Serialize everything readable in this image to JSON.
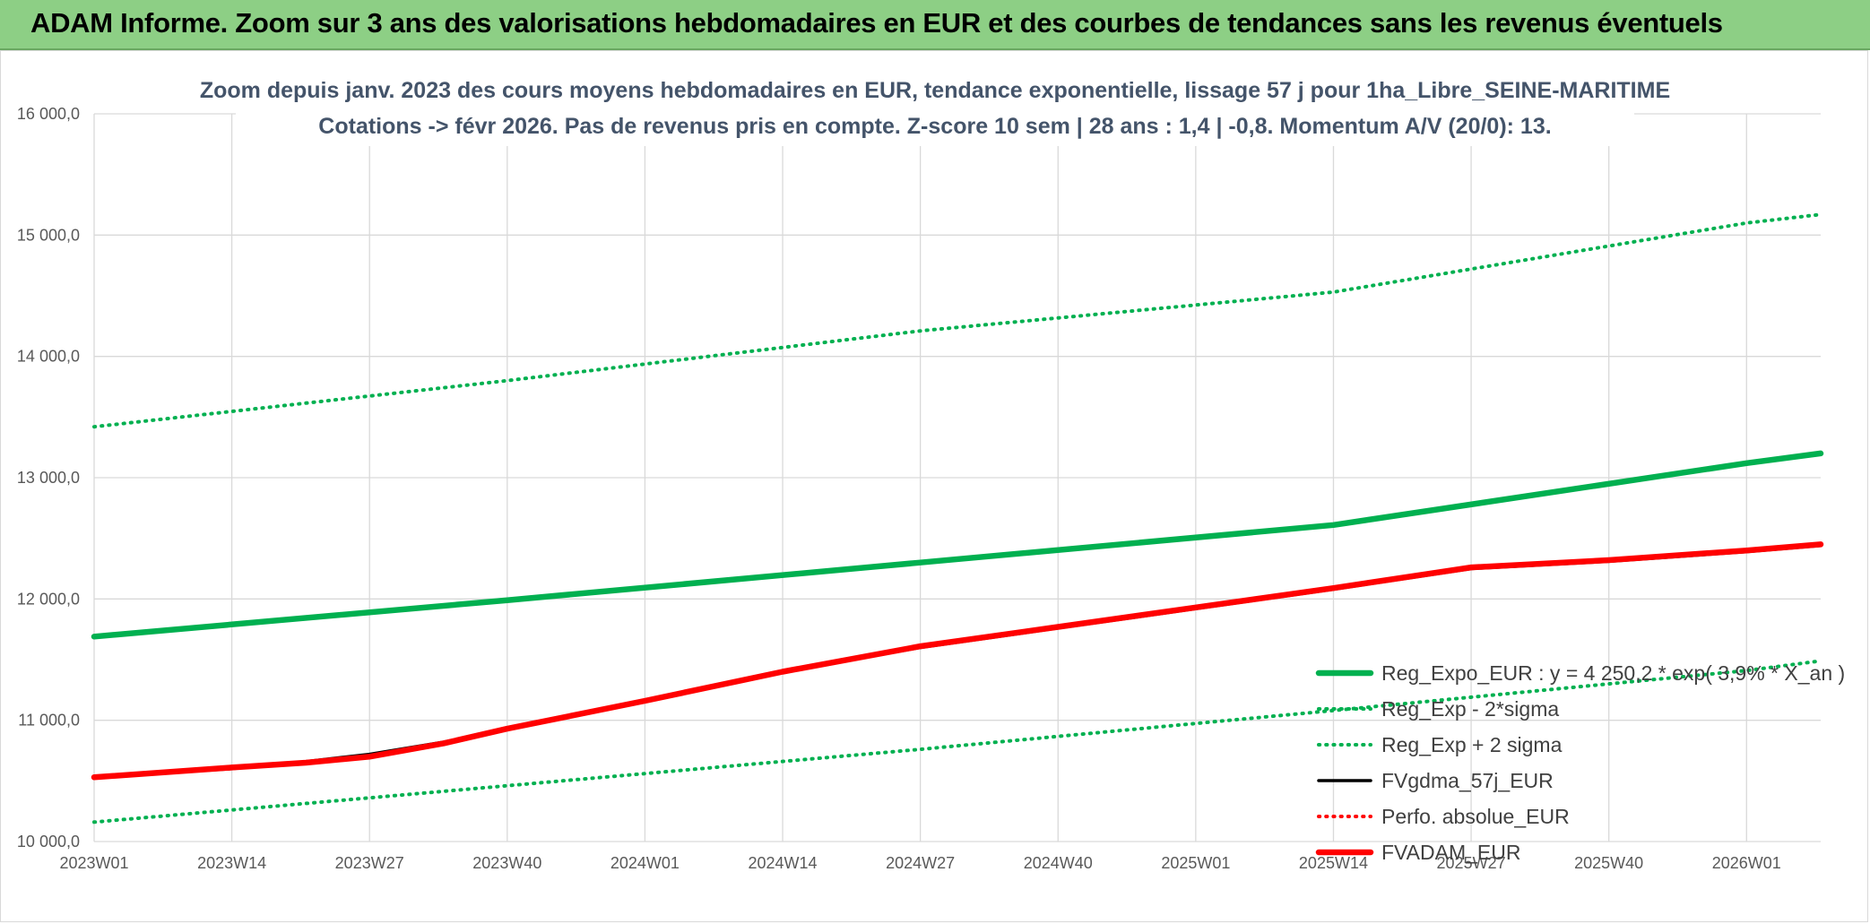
{
  "banner": {
    "title": "ADAM Informe. Zoom sur 3 ans des valorisations hebdomadaires en EUR et des courbes de tendances sans les revenus éventuels"
  },
  "colors": {
    "banner_bg": "#8dcf85",
    "trend_green": "#00b050",
    "dotted_green": "#00b050",
    "black": "#000000",
    "red": "#ff0000",
    "grid": "#d9d9d9"
  },
  "chart_data": {
    "type": "line",
    "title": [
      "Zoom depuis janv. 2023 des cours moyens hebdomadaires en EUR, tendance exponentielle, lissage 57 j pour 1ha_Libre_SEINE-MARITIME",
      "Cotations -> févr 2026. Pas de revenus pris en compte. Z-score 10 sem | 28 ans : 1,4 | -0,8. Momentum A/V (20/0): 13."
    ],
    "xlabel": "",
    "ylabel": "",
    "ylim": [
      10000,
      16000
    ],
    "y_ticks": [
      "10 000,0",
      "11 000,0",
      "12 000,0",
      "13 000,0",
      "14 000,0",
      "15 000,0",
      "16 000,0"
    ],
    "x_ticks": [
      "2023W01",
      "2023W14",
      "2023W27",
      "2023W40",
      "2024W01",
      "2024W14",
      "2024W27",
      "2024W40",
      "2025W01",
      "2025W14",
      "2025W27",
      "2025W40",
      "2026W01"
    ],
    "x_range_weeks": [
      0,
      163
    ],
    "grid": true,
    "legend_position": "right",
    "series": [
      {
        "name": "Reg_Expo_EUR : y = 4 250,2 * exp( 3,9% *  X_an )",
        "style": "solid-thick",
        "color": "#00b050",
        "points": [
          [
            0,
            11690
          ],
          [
            39,
            11990
          ],
          [
            78,
            12300
          ],
          [
            117,
            12610
          ],
          [
            156,
            13120
          ],
          [
            163,
            13200
          ]
        ]
      },
      {
        "name": "Reg_Exp - 2*sigma",
        "style": "dotted",
        "color": "#00b050",
        "points": [
          [
            0,
            10160
          ],
          [
            39,
            10460
          ],
          [
            78,
            10760
          ],
          [
            117,
            11080
          ],
          [
            156,
            11410
          ],
          [
            163,
            11490
          ]
        ]
      },
      {
        "name": "Reg_Exp + 2 sigma",
        "style": "dotted",
        "color": "#00b050",
        "points": [
          [
            0,
            13420
          ],
          [
            39,
            13800
          ],
          [
            78,
            14210
          ],
          [
            117,
            14530
          ],
          [
            156,
            15100
          ],
          [
            163,
            15170
          ]
        ]
      },
      {
        "name": "FVgdma_57j_EUR",
        "style": "solid",
        "color": "#000000",
        "points": [
          [
            0,
            10530
          ],
          [
            13,
            10600
          ],
          [
            20,
            10660
          ],
          [
            26,
            10720
          ],
          [
            33,
            10820
          ],
          [
            39,
            10930
          ],
          [
            52,
            11160
          ],
          [
            65,
            11400
          ],
          [
            78,
            11600
          ],
          [
            91,
            11760
          ],
          [
            104,
            11920
          ],
          [
            117,
            12080
          ],
          [
            130,
            12250
          ],
          [
            143,
            12310
          ],
          [
            156,
            12390
          ],
          [
            163,
            12440
          ]
        ]
      },
      {
        "name": "Perfo. absolue_EUR",
        "style": "dotted",
        "color": "#ff0000",
        "points": []
      },
      {
        "name": "FVADAM_EUR",
        "style": "solid-thick",
        "color": "#ff0000",
        "points": [
          [
            0,
            10530
          ],
          [
            13,
            10610
          ],
          [
            20,
            10650
          ],
          [
            26,
            10700
          ],
          [
            33,
            10810
          ],
          [
            39,
            10930
          ],
          [
            52,
            11160
          ],
          [
            65,
            11400
          ],
          [
            78,
            11610
          ],
          [
            91,
            11770
          ],
          [
            104,
            11930
          ],
          [
            117,
            12090
          ],
          [
            130,
            12260
          ],
          [
            143,
            12320
          ],
          [
            156,
            12400
          ],
          [
            163,
            12450
          ]
        ]
      }
    ]
  }
}
